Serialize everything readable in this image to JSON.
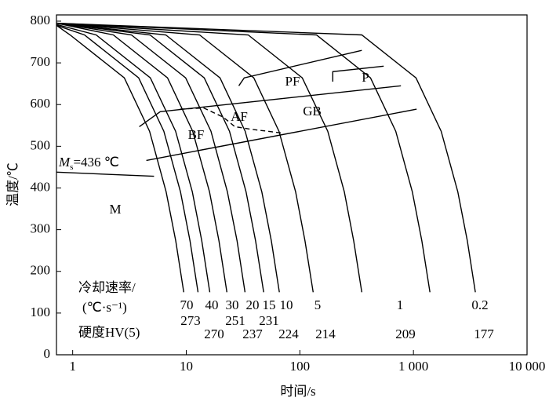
{
  "chart_data": {
    "type": "line",
    "xlabel": "时间/s",
    "ylabel": "温度/℃",
    "log_x": true,
    "color": "#000000",
    "xlim": [
      0.72,
      10000
    ],
    "ylim": [
      0,
      815
    ],
    "xticks": [
      1,
      10,
      100,
      {
        "value": 1000,
        "label": "1 000"
      },
      {
        "value": 10000,
        "label": "10 000"
      }
    ],
    "yticks": [
      0,
      100,
      200,
      300,
      400,
      500,
      600,
      700,
      800
    ],
    "series": [
      {
        "x": [
          0.72,
          0.95,
          2.85,
          4.75,
          6.65,
          8.08,
          9.5
        ],
        "values": [
          790,
          767,
          664,
          536,
          391,
          273,
          150
        ]
      },
      {
        "x": [
          0.72,
          1.27,
          3.81,
          6.35,
          8.89,
          10.8,
          12.7
        ],
        "values": [
          790,
          767,
          664,
          536,
          391,
          273,
          150
        ]
      },
      {
        "x": [
          0.72,
          1.61,
          4.83,
          8.05,
          11.3,
          13.7,
          16.1
        ],
        "values": [
          792,
          767,
          664,
          536,
          391,
          273,
          150
        ]
      },
      {
        "x": [
          0.72,
          2.28,
          6.84,
          11.4,
          16.0,
          19.4,
          22.8
        ],
        "values": [
          795,
          767,
          664,
          536,
          391,
          273,
          150
        ]
      },
      {
        "x": [
          0.72,
          3.29,
          9.87,
          16.5,
          23.0,
          28.0,
          32.9
        ],
        "values": [
          795,
          767,
          664,
          536,
          391,
          273,
          150
        ]
      },
      {
        "x": [
          0.72,
          4.8,
          14.4,
          24,
          33.6,
          40.8,
          48
        ],
        "values": [
          795,
          767,
          664,
          536,
          391,
          273,
          150
        ]
      },
      {
        "x": [
          0.72,
          6.6,
          19.8,
          33,
          46.2,
          56.1,
          66
        ],
        "values": [
          795,
          767,
          664,
          536,
          391,
          273,
          150
        ]
      },
      {
        "x": [
          0.72,
          13.1,
          39.3,
          65.5,
          91.7,
          111,
          131
        ],
        "values": [
          795,
          767,
          664,
          536,
          391,
          273,
          150
        ]
      },
      {
        "x": [
          0.72,
          35.1,
          105,
          176,
          246,
          298,
          351
        ],
        "values": [
          795,
          767,
          664,
          536,
          391,
          273,
          150
        ]
      },
      {
        "x": [
          0.72,
          140,
          419,
          698,
          977,
          1187,
          1396
        ],
        "values": [
          795,
          767,
          664,
          536,
          391,
          273,
          150
        ]
      },
      {
        "x": [
          0.72,
          351,
          1053,
          1755,
          2457,
          2984,
          3510
        ],
        "values": [
          795,
          767,
          664,
          536,
          391,
          273,
          150
        ]
      },
      {
        "x": [
          0.72,
          5.2
        ],
        "values": [
          438,
          428
        ]
      },
      {
        "x": [
          4.45,
          1066
        ],
        "values": [
          466,
          589
        ]
      },
      {
        "x": [
          3.86,
          5.9,
          776
        ],
        "values": [
          547,
          583,
          645
        ]
      },
      {
        "x": [
          29,
          32.4,
          351
        ],
        "values": [
          645,
          664,
          730
        ]
      },
      {
        "x": [
          195,
          195,
          547
        ],
        "values": [
          655,
          679,
          692
        ]
      },
      {
        "x": [
          8.8,
          14.2,
          21.1,
          26.8,
          36.8,
          69
        ],
        "values": [
          589,
          592,
          570,
          547,
          541,
          532
        ],
        "dashed": true
      }
    ],
    "ms_label": {
      "main": "M",
      "sub": "s",
      "rest": "=436 ℃"
    },
    "regions": [
      "M",
      "BF",
      "AF",
      "GB",
      "PF",
      "P"
    ],
    "rate_title": [
      "冷却速率/",
      "(℃·s⁻¹)",
      "硬度HV(5)"
    ],
    "rates": [
      70,
      40,
      30,
      20,
      15,
      10,
      5,
      1,
      0.2
    ],
    "hardness": [
      273,
      270,
      251,
      237,
      231,
      224,
      214,
      209,
      177
    ]
  }
}
